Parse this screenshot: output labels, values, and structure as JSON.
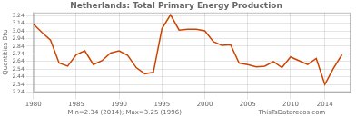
{
  "chart_data": {
    "type": "line",
    "title": "Netherlands: Total Primary Energy Production",
    "y_label": "Quantities Btu",
    "annotations": [
      "Min=2.34 (2014); Max=3.25 (1996)",
      "ThisTsDatarecos.com"
    ],
    "x": [
      1980,
      1981,
      1982,
      1983,
      1984,
      1985,
      1986,
      1987,
      1988,
      1989,
      1990,
      1991,
      1992,
      1993,
      1994,
      1995,
      1996,
      1997,
      1998,
      1999,
      2000,
      2001,
      2002,
      2003,
      2004,
      2005,
      2006,
      2007,
      2008,
      2009,
      2010,
      2011,
      2012,
      2013,
      2014,
      2015,
      2016
    ],
    "values": [
      3.13,
      3.02,
      2.92,
      2.62,
      2.58,
      2.73,
      2.78,
      2.6,
      2.65,
      2.75,
      2.78,
      2.72,
      2.56,
      2.48,
      2.5,
      3.07,
      3.25,
      3.05,
      3.06,
      3.06,
      3.04,
      2.9,
      2.85,
      2.86,
      2.62,
      2.6,
      2.57,
      2.58,
      2.64,
      2.56,
      2.7,
      2.65,
      2.6,
      2.68,
      2.34,
      2.55,
      2.73
    ],
    "color": "#cc4400",
    "xlim": [
      1980,
      2017
    ],
    "xticks": [
      1980,
      1985,
      1990,
      1995,
      2000,
      2005,
      2010,
      2014
    ],
    "ylim": [
      2.24,
      3.28
    ],
    "yticks": [
      2.24,
      2.34,
      2.44,
      2.54,
      2.64,
      2.74,
      2.84,
      2.94,
      3.04,
      3.14,
      3.24
    ],
    "grid": true
  }
}
